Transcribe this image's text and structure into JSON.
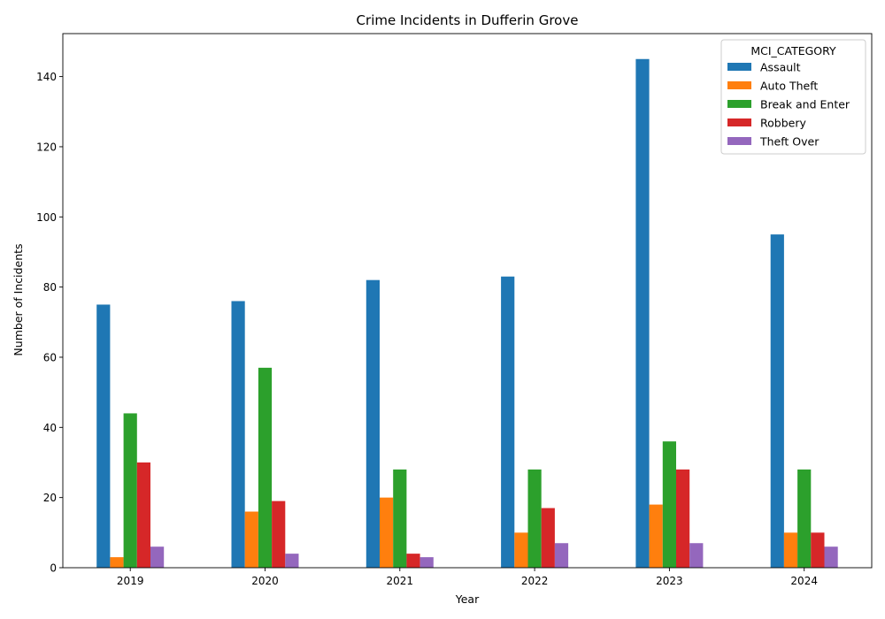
{
  "chart_data": {
    "type": "bar",
    "title": "Crime Incidents in Dufferin Grove",
    "xlabel": "Year",
    "ylabel": "Number of Incidents",
    "categories": [
      "2019",
      "2020",
      "2021",
      "2022",
      "2023",
      "2024"
    ],
    "ylim": [
      0,
      152.25
    ],
    "yticks": [
      0,
      20,
      40,
      60,
      80,
      100,
      120,
      140
    ],
    "grid": false,
    "legend": {
      "title": "MCI_CATEGORY",
      "placement": "top-right"
    },
    "series": [
      {
        "name": "Assault",
        "color": "#1f77b4",
        "values": [
          75,
          76,
          82,
          83,
          145,
          95
        ]
      },
      {
        "name": "Auto Theft",
        "color": "#ff7f0e",
        "values": [
          3,
          16,
          20,
          10,
          18,
          10
        ]
      },
      {
        "name": "Break and Enter",
        "color": "#2ca02c",
        "values": [
          44,
          57,
          28,
          28,
          36,
          28
        ]
      },
      {
        "name": "Robbery",
        "color": "#d62728",
        "values": [
          30,
          19,
          4,
          17,
          28,
          10
        ]
      },
      {
        "name": "Theft Over",
        "color": "#9467bd",
        "values": [
          6,
          4,
          3,
          7,
          7,
          6
        ]
      }
    ]
  }
}
